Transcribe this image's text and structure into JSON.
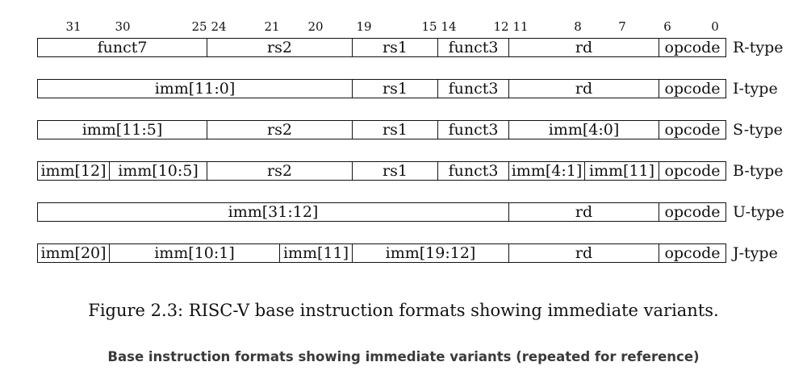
{
  "bit_labels": [
    "31",
    "30",
    "25",
    "24",
    "21",
    "20",
    "19",
    "15",
    "14",
    "12",
    "11",
    "8",
    "7",
    "6",
    "0"
  ],
  "formats": [
    {
      "type_label": "R-type",
      "fields": [
        "funct7",
        "rs2",
        "rs1",
        "funct3",
        "rd",
        "opcode"
      ]
    },
    {
      "type_label": "I-type",
      "fields": [
        "imm[11:0]",
        "rs1",
        "funct3",
        "rd",
        "opcode"
      ]
    },
    {
      "type_label": "S-type",
      "fields": [
        "imm[11:5]",
        "rs2",
        "rs1",
        "funct3",
        "imm[4:0]",
        "opcode"
      ]
    },
    {
      "type_label": "B-type",
      "fields": [
        "imm[12]",
        "imm[10:5]",
        "rs2",
        "rs1",
        "funct3",
        "imm[4:1]",
        "imm[11]",
        "opcode"
      ]
    },
    {
      "type_label": "U-type",
      "fields": [
        "imm[31:12]",
        "rd",
        "opcode"
      ]
    },
    {
      "type_label": "J-type",
      "fields": [
        "imm[20]",
        "imm[10:1]",
        "imm[11]",
        "imm[19:12]",
        "rd",
        "opcode"
      ]
    }
  ],
  "caption": "Figure 2.3: RISC-V base instruction formats showing immediate variants.",
  "subcaption": "Base instruction formats showing immediate variants (repeated for reference)"
}
